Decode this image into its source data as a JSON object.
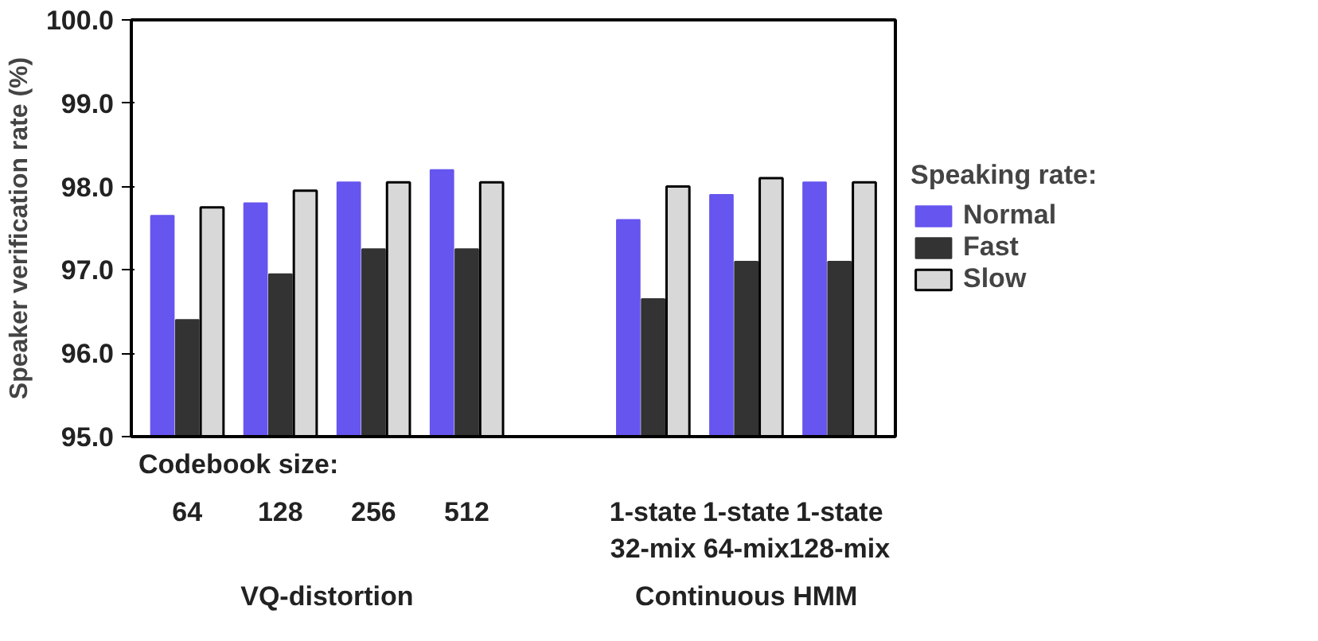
{
  "chart_data": {
    "type": "bar",
    "ylabel": "Speaker verification rate (%)",
    "legend_title": "Speaking rate:",
    "categories": [
      "64",
      "128",
      "256",
      "512",
      null,
      "1-state\n32-mix",
      "1-state\n64-mix",
      "1-state\n128-mix"
    ],
    "series": [
      {
        "name": "Normal",
        "color": "#6655ee",
        "values": [
          97.65,
          97.8,
          98.05,
          98.2,
          null,
          97.6,
          97.9,
          98.05
        ]
      },
      {
        "name": "Fast",
        "color": "#333333",
        "values": [
          96.4,
          96.95,
          97.25,
          97.25,
          null,
          96.65,
          97.1,
          97.1
        ]
      },
      {
        "name": "Slow",
        "color": "#d8d8d8",
        "values": [
          97.75,
          97.95,
          98.05,
          98.05,
          null,
          98.0,
          98.1,
          98.05
        ]
      }
    ],
    "ylim": [
      95,
      100
    ],
    "yticks": [
      {
        "value": 95,
        "label": "95.0"
      },
      {
        "value": 96,
        "label": "96.0"
      },
      {
        "value": 97,
        "label": "97.0"
      },
      {
        "value": 98,
        "label": "98.0"
      },
      {
        "value": 99,
        "label": "99.0"
      },
      {
        "value": 100,
        "label": "100.0"
      }
    ],
    "annotations": [
      "Codebook size:",
      "VQ-distortion",
      "Continuous HMM"
    ],
    "legend": "right",
    "grid": false
  }
}
